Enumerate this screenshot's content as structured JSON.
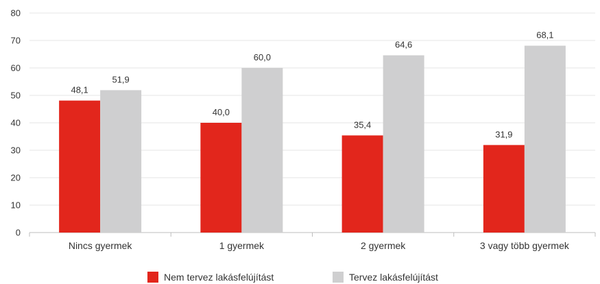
{
  "chart_data": {
    "type": "bar",
    "categories": [
      "Nincs gyermek",
      "1 gyermek",
      "2 gyermek",
      "3 vagy több gyermek"
    ],
    "series": [
      {
        "name": "Nem tervez lakásfelújítást",
        "values": [
          48.1,
          40.0,
          35.4,
          31.9
        ],
        "labels": [
          "48,1",
          "40,0",
          "35,4",
          "31,9"
        ],
        "color": "#e2261c"
      },
      {
        "name": "Tervez lakásfelújítást",
        "values": [
          51.9,
          60.0,
          64.6,
          68.1
        ],
        "labels": [
          "51,9",
          "60,0",
          "64,6",
          "68,1"
        ],
        "color": "#cfcfd0"
      }
    ],
    "yticks": [
      "0",
      "10",
      "20",
      "30",
      "40",
      "50",
      "60",
      "70",
      "80"
    ],
    "ylim": [
      0,
      80
    ],
    "grid": true,
    "legend_position": "bottom-center"
  }
}
